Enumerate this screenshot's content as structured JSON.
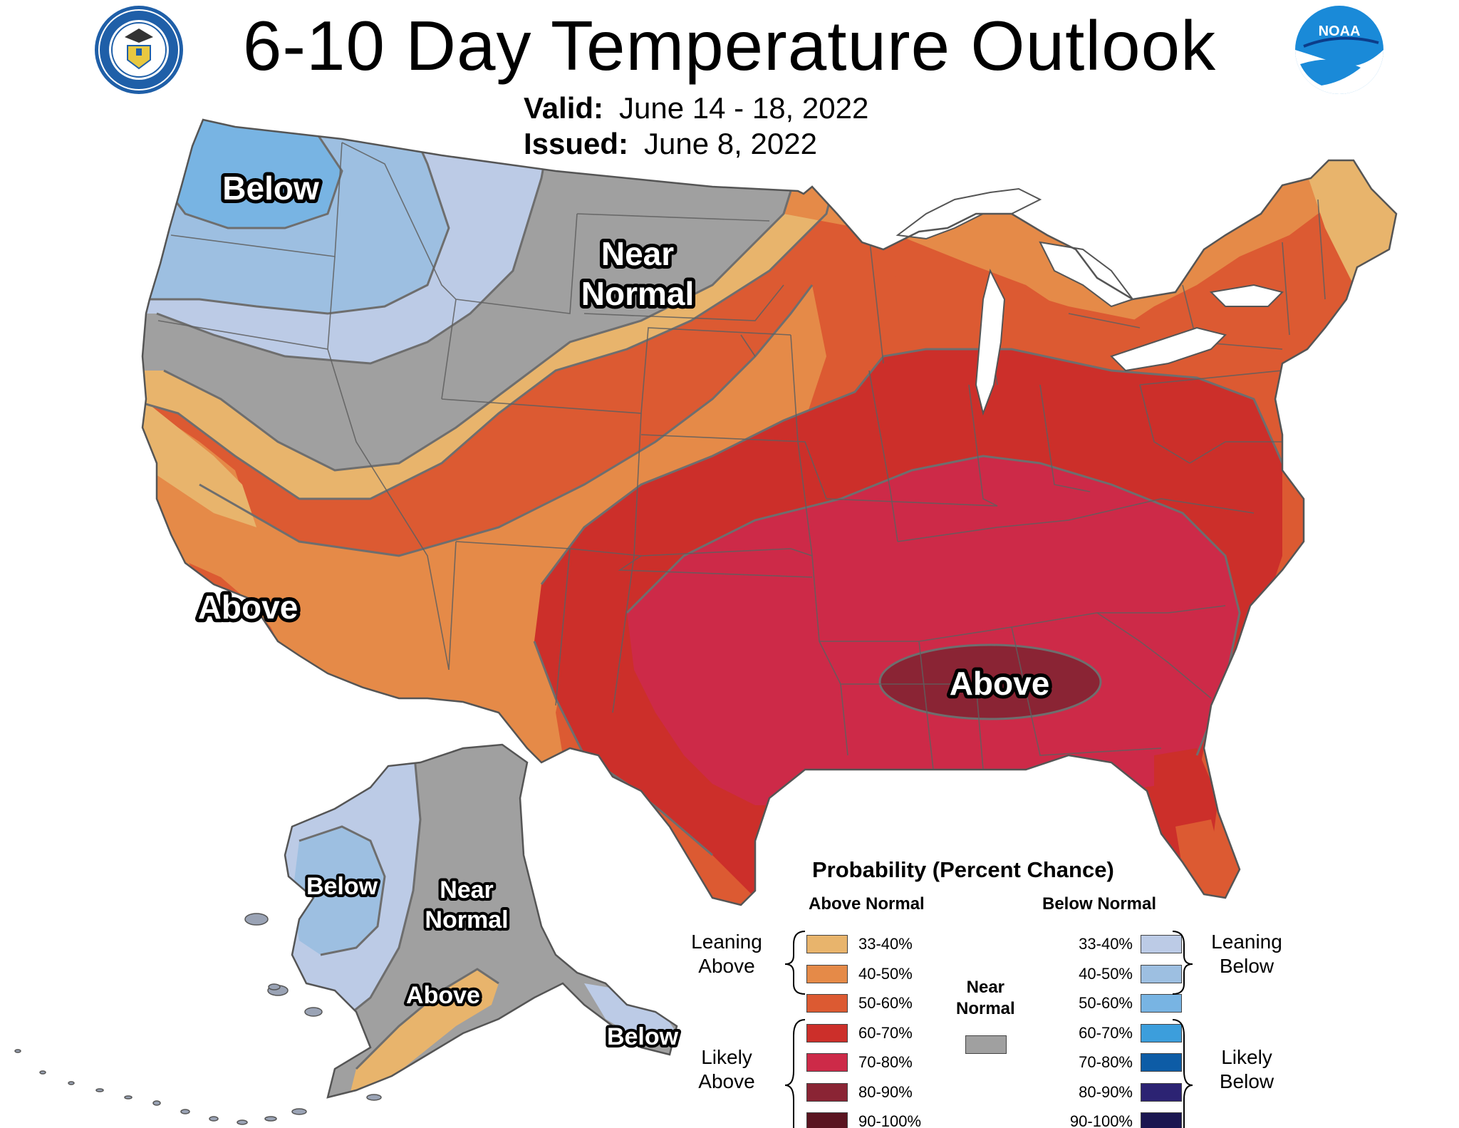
{
  "title": "6-10 Day Temperature Outlook",
  "valid_label": "Valid:",
  "valid_value": "June 14 - 18, 2022",
  "issued_label": "Issued:",
  "issued_value": "June 8, 2022",
  "logos": {
    "left": {
      "name": "doc-seal-icon"
    },
    "right": {
      "name": "noaa-logo-icon"
    }
  },
  "region_labels": {
    "nw_below": "Below",
    "near_normal_1": "Near",
    "near_normal_2": "Normal",
    "ca_above": "Above",
    "se_above": "Above",
    "ak_below": "Below",
    "ak_near_1": "Near",
    "ak_near_2": "Normal",
    "ak_above": "Above",
    "ak_se_below": "Below"
  },
  "legend": {
    "title": "Probability (Percent Chance)",
    "above_header": "Above Normal",
    "below_header": "Below Normal",
    "near_1": "Near",
    "near_2": "Normal",
    "leaning_above_1": "Leaning",
    "leaning_above_2": "Above",
    "likely_above_1": "Likely",
    "likely_above_2": "Above",
    "leaning_below_1": "Leaning",
    "leaning_below_2": "Below",
    "likely_below_1": "Likely",
    "likely_below_2": "Below",
    "above": [
      {
        "range": "33-40%",
        "color": "#e8b46c"
      },
      {
        "range": "40-50%",
        "color": "#e58a48"
      },
      {
        "range": "50-60%",
        "color": "#dc5a32"
      },
      {
        "range": "60-70%",
        "color": "#cc2f2a"
      },
      {
        "range": "70-80%",
        "color": "#cd2a48"
      },
      {
        "range": "80-90%",
        "color": "#8a2434"
      },
      {
        "range": "90-100%",
        "color": "#5a1420"
      }
    ],
    "below": [
      {
        "range": "33-40%",
        "color": "#bccbe6"
      },
      {
        "range": "40-50%",
        "color": "#9dbfe1"
      },
      {
        "range": "50-60%",
        "color": "#78b4e3"
      },
      {
        "range": "60-70%",
        "color": "#3c9edc"
      },
      {
        "range": "70-80%",
        "color": "#0d5ca6"
      },
      {
        "range": "80-90%",
        "color": "#2c2373"
      },
      {
        "range": "90-100%",
        "color": "#1a1650"
      }
    ],
    "near_color": "#a0a0a0"
  }
}
